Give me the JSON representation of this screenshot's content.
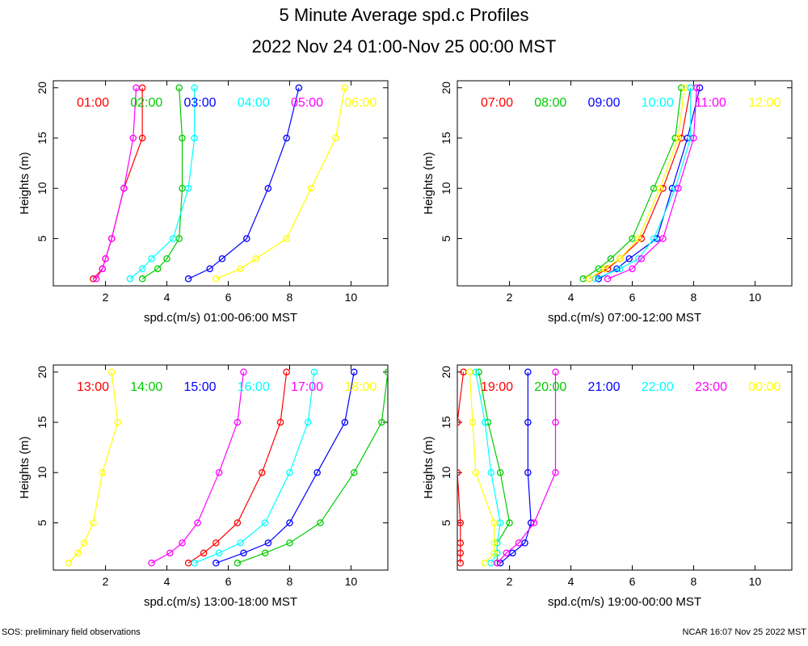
{
  "title": "5 Minute Average spd.c Profiles",
  "subtitle": "2022 Nov 24 01:00-Nov 25 00:00 MST",
  "footer_left": "SOS: preliminary field observations",
  "footer_right": "NCAR 16:07 Nov 25 2022 MST",
  "series_colors": [
    "#ff0000",
    "#00cc00",
    "#0000ff",
    "#00ffff",
    "#ff00ff",
    "#ffff00"
  ],
  "chart_data": [
    {
      "type": "line",
      "xlabel": "spd.c(m/s) 01:00-06:00 MST",
      "ylabel": "Heights (m)",
      "xlim": [
        0.3,
        11.2
      ],
      "ylim": [
        0.3,
        20.7
      ],
      "xticks": [
        2,
        4,
        6,
        8,
        10
      ],
      "yticks": [
        5,
        10,
        15,
        20
      ],
      "heights": [
        1,
        2,
        3,
        5,
        10,
        15,
        20
      ],
      "series": [
        {
          "name": "01:00",
          "values": [
            1.6,
            1.9,
            2.0,
            2.2,
            2.6,
            3.2,
            3.2
          ]
        },
        {
          "name": "02:00",
          "values": [
            3.2,
            3.7,
            4.0,
            4.4,
            4.5,
            4.5,
            4.4
          ]
        },
        {
          "name": "03:00",
          "values": [
            4.7,
            5.4,
            5.8,
            6.6,
            7.3,
            7.9,
            8.3
          ]
        },
        {
          "name": "04:00",
          "values": [
            2.8,
            3.2,
            3.5,
            4.2,
            4.7,
            4.9,
            4.9
          ]
        },
        {
          "name": "05:00",
          "values": [
            1.7,
            1.9,
            2.0,
            2.2,
            2.6,
            2.9,
            3.0
          ]
        },
        {
          "name": "06:00",
          "values": [
            5.6,
            6.4,
            6.9,
            7.9,
            8.7,
            9.5,
            9.8
          ]
        }
      ]
    },
    {
      "type": "line",
      "xlabel": "spd.c(m/s) 07:00-12:00 MST",
      "ylabel": "Heights (m)",
      "xlim": [
        0.3,
        11.2
      ],
      "ylim": [
        0.3,
        20.7
      ],
      "xticks": [
        2,
        4,
        6,
        8,
        10
      ],
      "yticks": [
        5,
        10,
        15,
        20
      ],
      "heights": [
        1,
        2,
        3,
        5,
        10,
        15,
        20
      ],
      "series": [
        {
          "name": "07:00",
          "values": [
            4.6,
            5.2,
            5.6,
            6.3,
            7.0,
            7.6,
            7.9
          ]
        },
        {
          "name": "08:00",
          "values": [
            4.4,
            4.9,
            5.3,
            6.0,
            6.7,
            7.4,
            7.6
          ]
        },
        {
          "name": "09:00",
          "values": [
            4.9,
            5.5,
            5.9,
            6.8,
            7.3,
            7.8,
            8.2
          ]
        },
        {
          "name": "10:00",
          "values": [
            4.8,
            5.6,
            6.2,
            6.7,
            7.4,
            7.9,
            7.9
          ]
        },
        {
          "name": "11:00",
          "values": [
            5.2,
            6.0,
            6.3,
            7.0,
            7.5,
            8.0,
            8.1
          ]
        },
        {
          "name": "12:00",
          "values": [
            4.6,
            5.1,
            5.6,
            6.2,
            6.9,
            7.5,
            7.7
          ]
        }
      ]
    },
    {
      "type": "line",
      "xlabel": "spd.c(m/s) 13:00-18:00 MST",
      "ylabel": "Heights (m)",
      "xlim": [
        0.3,
        11.2
      ],
      "ylim": [
        0.3,
        20.7
      ],
      "xticks": [
        2,
        4,
        6,
        8,
        10
      ],
      "yticks": [
        5,
        10,
        15,
        20
      ],
      "heights": [
        1,
        2,
        3,
        5,
        10,
        15,
        20
      ],
      "series": [
        {
          "name": "13:00",
          "values": [
            4.7,
            5.2,
            5.6,
            6.3,
            7.1,
            7.7,
            7.9
          ]
        },
        {
          "name": "14:00",
          "values": [
            6.3,
            7.2,
            8.0,
            9.0,
            10.1,
            11.0,
            11.2
          ]
        },
        {
          "name": "15:00",
          "values": [
            5.6,
            6.5,
            7.3,
            8.0,
            8.9,
            9.8,
            10.1
          ]
        },
        {
          "name": "16:00",
          "values": [
            4.9,
            5.7,
            6.4,
            7.2,
            8.0,
            8.6,
            8.8
          ]
        },
        {
          "name": "17:00",
          "values": [
            3.5,
            4.1,
            4.5,
            5.0,
            5.7,
            6.3,
            6.5
          ]
        },
        {
          "name": "18:00",
          "values": [
            0.8,
            1.1,
            1.3,
            1.6,
            1.9,
            2.4,
            2.2
          ]
        }
      ]
    },
    {
      "type": "line",
      "xlabel": "spd.c(m/s) 19:00-00:00 MST",
      "ylabel": "Heights (m)",
      "xlim": [
        0.3,
        11.2
      ],
      "ylim": [
        0.3,
        20.7
      ],
      "xticks": [
        2,
        4,
        6,
        8,
        10
      ],
      "yticks": [
        5,
        10,
        15,
        20
      ],
      "heights": [
        1,
        2,
        3,
        5,
        10,
        15,
        20
      ],
      "series": [
        {
          "name": "19:00",
          "values": [
            0.4,
            0.4,
            0.4,
            0.4,
            0.3,
            0.3,
            0.5
          ]
        },
        {
          "name": "20:00",
          "values": [
            1.6,
            1.6,
            1.6,
            2.0,
            1.7,
            1.3,
            1.0
          ]
        },
        {
          "name": "21:00",
          "values": [
            1.7,
            2.1,
            2.5,
            2.7,
            2.6,
            2.6,
            2.6
          ]
        },
        {
          "name": "22:00",
          "values": [
            1.4,
            1.6,
            1.6,
            1.7,
            1.4,
            1.2,
            0.9
          ]
        },
        {
          "name": "23:00",
          "values": [
            1.6,
            1.9,
            2.3,
            2.8,
            3.5,
            3.5,
            3.5
          ]
        },
        {
          "name": "00:00",
          "values": [
            1.2,
            1.5,
            1.5,
            1.5,
            0.9,
            0.8,
            0.7
          ]
        }
      ]
    }
  ]
}
